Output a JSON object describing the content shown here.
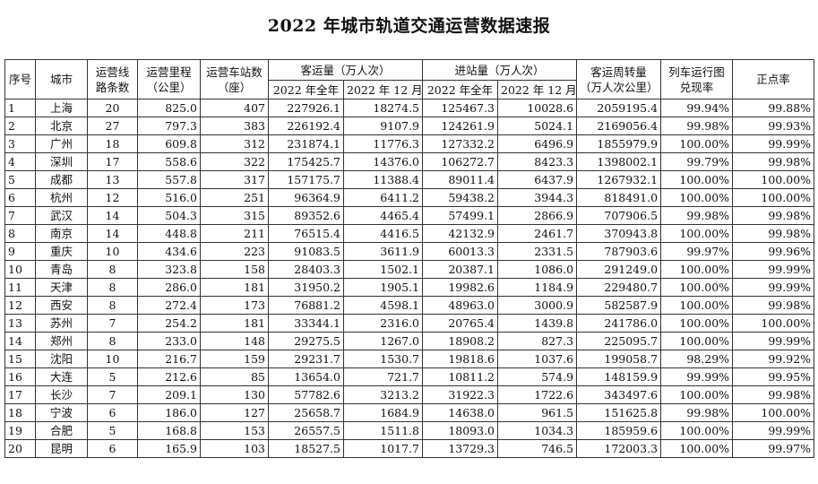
{
  "title": "2022 年城市轨道交通运营数据速报",
  "headers": {
    "seq": "序号",
    "city": "城市",
    "lines_a": "运营线",
    "lines_b": "路条数",
    "mileage_a": "运营里程",
    "mileage_b": "（公里）",
    "stations_a": "运营车站数",
    "stations_b": "（座）",
    "ridership": "客运量（万人次）",
    "entries": "进站量（万人次）",
    "pkm_a": "客运周转量",
    "pkm_b": "（万人次公里）",
    "schedule_a": "列车运行图",
    "schedule_b": "兑现率",
    "ontime": "正点率",
    "full_year": "2022 年全年",
    "dec": "2022 年 12 月份"
  },
  "rows": [
    {
      "seq": "1",
      "city": "上海",
      "lines": "20",
      "mileage": "825.0",
      "stations": "407",
      "rid_year": "227926.1",
      "rid_dec": "18274.5",
      "ent_year": "125467.3",
      "ent_dec": "10028.6",
      "pkm": "2059195.4",
      "schedule": "99.94%",
      "ontime": "99.88%"
    },
    {
      "seq": "2",
      "city": "北京",
      "lines": "27",
      "mileage": "797.3",
      "stations": "383",
      "rid_year": "226192.4",
      "rid_dec": "9107.9",
      "ent_year": "124261.9",
      "ent_dec": "5024.1",
      "pkm": "2169056.4",
      "schedule": "99.98%",
      "ontime": "99.93%"
    },
    {
      "seq": "3",
      "city": "广州",
      "lines": "18",
      "mileage": "609.8",
      "stations": "312",
      "rid_year": "231874.1",
      "rid_dec": "11776.3",
      "ent_year": "127332.2",
      "ent_dec": "6496.9",
      "pkm": "1855979.9",
      "schedule": "100.00%",
      "ontime": "99.99%"
    },
    {
      "seq": "4",
      "city": "深圳",
      "lines": "17",
      "mileage": "558.6",
      "stations": "322",
      "rid_year": "175425.7",
      "rid_dec": "14376.0",
      "ent_year": "106272.7",
      "ent_dec": "8423.3",
      "pkm": "1398002.1",
      "schedule": "99.79%",
      "ontime": "99.98%"
    },
    {
      "seq": "5",
      "city": "成都",
      "lines": "13",
      "mileage": "557.8",
      "stations": "317",
      "rid_year": "157175.7",
      "rid_dec": "11388.4",
      "ent_year": "89011.4",
      "ent_dec": "6437.9",
      "pkm": "1267932.1",
      "schedule": "100.00%",
      "ontime": "100.00%"
    },
    {
      "seq": "6",
      "city": "杭州",
      "lines": "12",
      "mileage": "516.0",
      "stations": "251",
      "rid_year": "96364.9",
      "rid_dec": "6411.2",
      "ent_year": "59438.2",
      "ent_dec": "3944.3",
      "pkm": "818491.0",
      "schedule": "100.00%",
      "ontime": "100.00%"
    },
    {
      "seq": "7",
      "city": "武汉",
      "lines": "14",
      "mileage": "504.3",
      "stations": "315",
      "rid_year": "89352.6",
      "rid_dec": "4465.4",
      "ent_year": "57499.1",
      "ent_dec": "2866.9",
      "pkm": "707906.5",
      "schedule": "99.98%",
      "ontime": "99.98%"
    },
    {
      "seq": "8",
      "city": "南京",
      "lines": "14",
      "mileage": "448.8",
      "stations": "211",
      "rid_year": "76515.4",
      "rid_dec": "4416.5",
      "ent_year": "42132.9",
      "ent_dec": "2461.7",
      "pkm": "370943.8",
      "schedule": "100.00%",
      "ontime": "99.98%"
    },
    {
      "seq": "9",
      "city": "重庆",
      "lines": "10",
      "mileage": "434.6",
      "stations": "223",
      "rid_year": "91083.5",
      "rid_dec": "3611.9",
      "ent_year": "60013.3",
      "ent_dec": "2331.5",
      "pkm": "787903.6",
      "schedule": "99.97%",
      "ontime": "99.96%"
    },
    {
      "seq": "10",
      "city": "青岛",
      "lines": "8",
      "mileage": "323.8",
      "stations": "158",
      "rid_year": "28403.3",
      "rid_dec": "1502.1",
      "ent_year": "20387.1",
      "ent_dec": "1086.0",
      "pkm": "291249.0",
      "schedule": "100.00%",
      "ontime": "99.99%"
    },
    {
      "seq": "11",
      "city": "天津",
      "lines": "8",
      "mileage": "286.0",
      "stations": "181",
      "rid_year": "31950.2",
      "rid_dec": "1905.1",
      "ent_year": "19982.6",
      "ent_dec": "1184.9",
      "pkm": "229480.7",
      "schedule": "100.00%",
      "ontime": "99.99%"
    },
    {
      "seq": "12",
      "city": "西安",
      "lines": "8",
      "mileage": "272.4",
      "stations": "173",
      "rid_year": "76881.2",
      "rid_dec": "4598.1",
      "ent_year": "48963.0",
      "ent_dec": "3000.9",
      "pkm": "582587.9",
      "schedule": "100.00%",
      "ontime": "99.98%"
    },
    {
      "seq": "13",
      "city": "苏州",
      "lines": "7",
      "mileage": "254.2",
      "stations": "181",
      "rid_year": "33344.1",
      "rid_dec": "2316.0",
      "ent_year": "20765.4",
      "ent_dec": "1439.8",
      "pkm": "241786.0",
      "schedule": "100.00%",
      "ontime": "100.00%"
    },
    {
      "seq": "14",
      "city": "郑州",
      "lines": "8",
      "mileage": "233.0",
      "stations": "148",
      "rid_year": "29275.5",
      "rid_dec": "1267.0",
      "ent_year": "18908.2",
      "ent_dec": "827.3",
      "pkm": "225095.7",
      "schedule": "100.00%",
      "ontime": "99.99%"
    },
    {
      "seq": "15",
      "city": "沈阳",
      "lines": "10",
      "mileage": "216.7",
      "stations": "159",
      "rid_year": "29231.7",
      "rid_dec": "1530.7",
      "ent_year": "19818.6",
      "ent_dec": "1037.6",
      "pkm": "199058.7",
      "schedule": "98.29%",
      "ontime": "99.92%"
    },
    {
      "seq": "16",
      "city": "大连",
      "lines": "5",
      "mileage": "212.6",
      "stations": "85",
      "rid_year": "13654.0",
      "rid_dec": "721.7",
      "ent_year": "10811.2",
      "ent_dec": "574.9",
      "pkm": "148159.9",
      "schedule": "99.99%",
      "ontime": "99.95%"
    },
    {
      "seq": "17",
      "city": "长沙",
      "lines": "7",
      "mileage": "209.1",
      "stations": "130",
      "rid_year": "57782.6",
      "rid_dec": "3213.2",
      "ent_year": "31922.3",
      "ent_dec": "1722.6",
      "pkm": "343497.6",
      "schedule": "100.00%",
      "ontime": "99.98%"
    },
    {
      "seq": "18",
      "city": "宁波",
      "lines": "6",
      "mileage": "186.0",
      "stations": "127",
      "rid_year": "25658.7",
      "rid_dec": "1684.9",
      "ent_year": "14638.0",
      "ent_dec": "961.5",
      "pkm": "151625.8",
      "schedule": "99.98%",
      "ontime": "100.00%"
    },
    {
      "seq": "19",
      "city": "合肥",
      "lines": "5",
      "mileage": "168.8",
      "stations": "153",
      "rid_year": "26557.5",
      "rid_dec": "1511.8",
      "ent_year": "18093.0",
      "ent_dec": "1034.3",
      "pkm": "185959.6",
      "schedule": "100.00%",
      "ontime": "99.99%"
    },
    {
      "seq": "20",
      "city": "昆明",
      "lines": "6",
      "mileage": "165.9",
      "stations": "103",
      "rid_year": "18527.5",
      "rid_dec": "1017.7",
      "ent_year": "13729.3",
      "ent_dec": "746.5",
      "pkm": "172003.3",
      "schedule": "100.00%",
      "ontime": "99.97%"
    }
  ]
}
